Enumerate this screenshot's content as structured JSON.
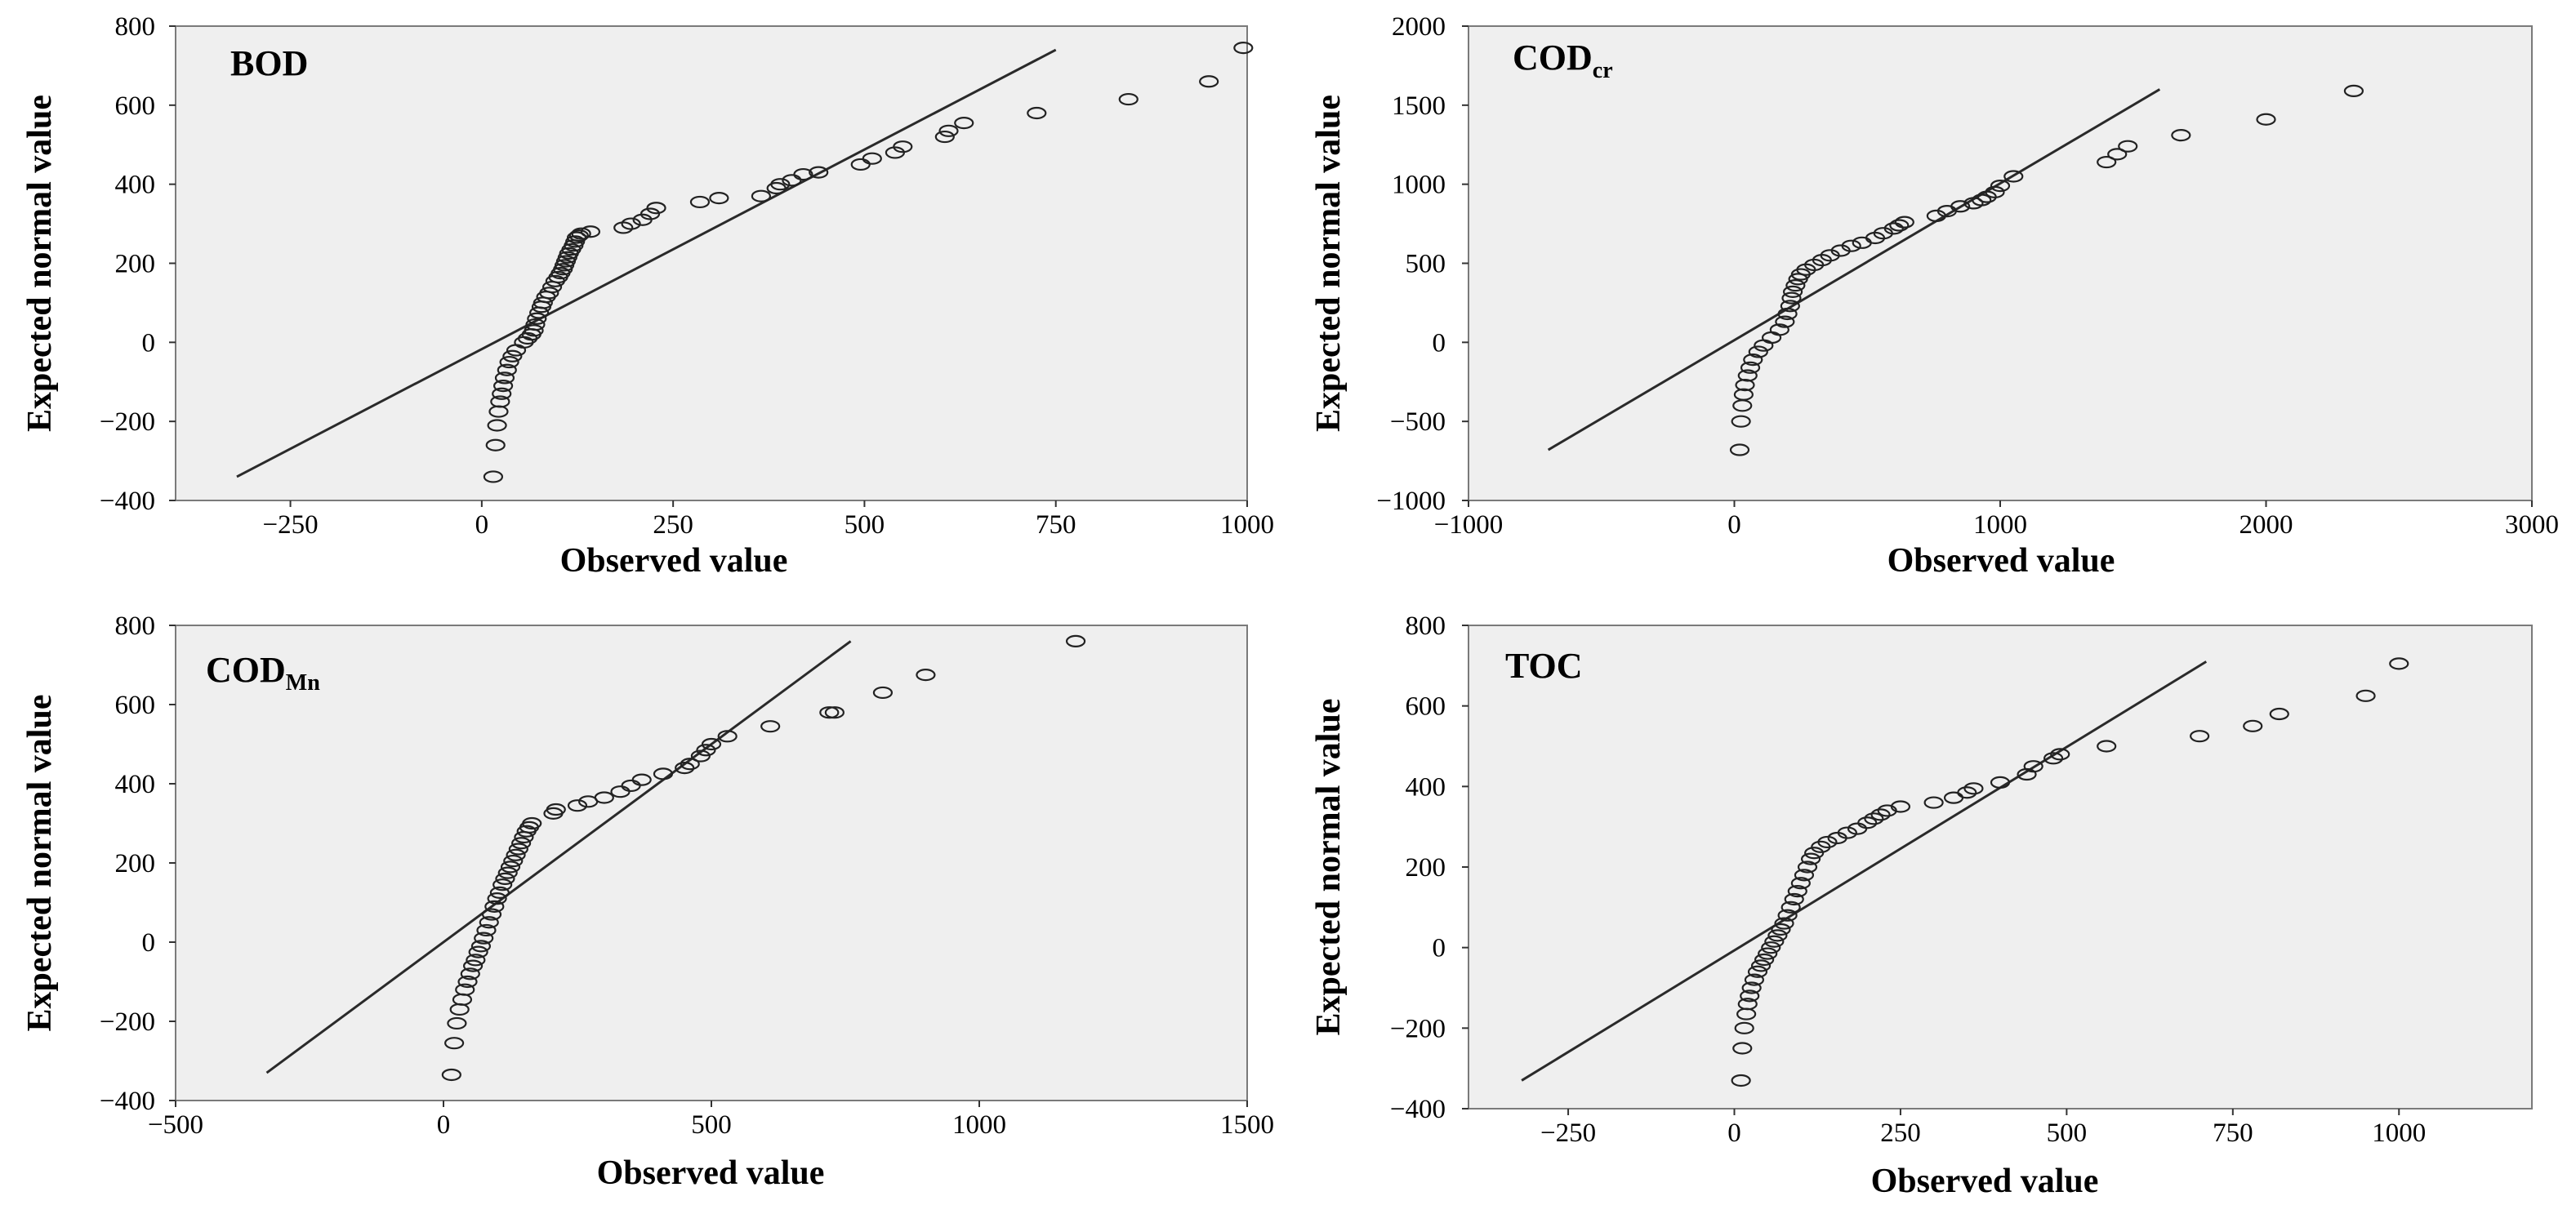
{
  "chart_data": [
    {
      "type": "scatter",
      "id": "bod",
      "title": "BOD",
      "title_sub": "",
      "xlabel": "Observed value",
      "ylabel": "Expected normal value",
      "xlim": [
        -400,
        1000
      ],
      "ylim": [
        -400,
        800
      ],
      "xticks": [
        -250,
        0,
        250,
        500,
        750,
        1000
      ],
      "yticks": [
        -400,
        -200,
        0,
        200,
        400,
        600,
        800
      ],
      "xtick_labels": [
        "−250",
        "0",
        "250",
        "500",
        "750",
        "1000"
      ],
      "ytick_labels": [
        "−400",
        "−200",
        "0",
        "200",
        "400",
        "600",
        "800"
      ],
      "reference_line": [
        [
          -320,
          -340
        ],
        [
          750,
          740
        ]
      ],
      "points": [
        [
          15,
          -340
        ],
        [
          18,
          -260
        ],
        [
          20,
          -210
        ],
        [
          22,
          -175
        ],
        [
          24,
          -150
        ],
        [
          26,
          -130
        ],
        [
          28,
          -110
        ],
        [
          30,
          -90
        ],
        [
          33,
          -70
        ],
        [
          36,
          -50
        ],
        [
          40,
          -35
        ],
        [
          45,
          -20
        ],
        [
          55,
          0
        ],
        [
          60,
          10
        ],
        [
          65,
          20
        ],
        [
          68,
          30
        ],
        [
          70,
          45
        ],
        [
          72,
          60
        ],
        [
          75,
          75
        ],
        [
          78,
          90
        ],
        [
          80,
          100
        ],
        [
          84,
          115
        ],
        [
          88,
          125
        ],
        [
          92,
          140
        ],
        [
          96,
          155
        ],
        [
          100,
          165
        ],
        [
          103,
          175
        ],
        [
          106,
          185
        ],
        [
          108,
          195
        ],
        [
          110,
          205
        ],
        [
          112,
          215
        ],
        [
          114,
          225
        ],
        [
          117,
          235
        ],
        [
          120,
          245
        ],
        [
          122,
          255
        ],
        [
          124,
          265
        ],
        [
          127,
          270
        ],
        [
          130,
          275
        ],
        [
          142,
          280
        ],
        [
          185,
          290
        ],
        [
          195,
          300
        ],
        [
          210,
          310
        ],
        [
          220,
          325
        ],
        [
          228,
          340
        ],
        [
          285,
          355
        ],
        [
          310,
          365
        ],
        [
          365,
          370
        ],
        [
          385,
          390
        ],
        [
          390,
          400
        ],
        [
          405,
          410
        ],
        [
          420,
          425
        ],
        [
          440,
          430
        ],
        [
          495,
          450
        ],
        [
          510,
          465
        ],
        [
          540,
          480
        ],
        [
          550,
          495
        ],
        [
          605,
          520
        ],
        [
          610,
          535
        ],
        [
          630,
          555
        ],
        [
          725,
          580
        ],
        [
          845,
          615
        ],
        [
          950,
          660
        ],
        [
          995,
          745
        ]
      ]
    },
    {
      "type": "scatter",
      "id": "codcr",
      "title": "COD",
      "title_sub": "cr",
      "xlabel": "Observed value",
      "ylabel": "Expected normal value",
      "xlim": [
        -1000,
        3000
      ],
      "ylim": [
        -1000,
        2000
      ],
      "xticks": [
        -1000,
        0,
        1000,
        2000,
        3000
      ],
      "yticks": [
        -1000,
        -500,
        0,
        500,
        1000,
        1500,
        2000
      ],
      "xtick_labels": [
        "−1000",
        "0",
        "1000",
        "2000",
        "3000"
      ],
      "ytick_labels": [
        "−1000",
        "−500",
        "0",
        "500",
        "1000",
        "1500",
        "2000"
      ],
      "reference_line": [
        [
          -700,
          -680
        ],
        [
          1600,
          1600
        ]
      ],
      "points": [
        [
          20,
          -680
        ],
        [
          25,
          -500
        ],
        [
          30,
          -400
        ],
        [
          35,
          -330
        ],
        [
          40,
          -270
        ],
        [
          50,
          -210
        ],
        [
          60,
          -160
        ],
        [
          70,
          -110
        ],
        [
          90,
          -60
        ],
        [
          110,
          -20
        ],
        [
          140,
          30
        ],
        [
          170,
          80
        ],
        [
          190,
          130
        ],
        [
          200,
          180
        ],
        [
          210,
          230
        ],
        [
          215,
          280
        ],
        [
          220,
          320
        ],
        [
          230,
          360
        ],
        [
          240,
          400
        ],
        [
          250,
          430
        ],
        [
          270,
          460
        ],
        [
          300,
          490
        ],
        [
          330,
          520
        ],
        [
          360,
          550
        ],
        [
          400,
          580
        ],
        [
          440,
          610
        ],
        [
          480,
          630
        ],
        [
          530,
          660
        ],
        [
          560,
          690
        ],
        [
          600,
          720
        ],
        [
          620,
          740
        ],
        [
          640,
          760
        ],
        [
          760,
          800
        ],
        [
          800,
          830
        ],
        [
          850,
          860
        ],
        [
          900,
          880
        ],
        [
          930,
          900
        ],
        [
          950,
          920
        ],
        [
          980,
          950
        ],
        [
          1000,
          990
        ],
        [
          1050,
          1050
        ],
        [
          1400,
          1140
        ],
        [
          1440,
          1190
        ],
        [
          1480,
          1240
        ],
        [
          1680,
          1310
        ],
        [
          2000,
          1410
        ],
        [
          2330,
          1590
        ]
      ]
    },
    {
      "type": "scatter",
      "id": "codmn",
      "title": "COD",
      "title_sub": "Mn",
      "xlabel": "Observed value",
      "ylabel": "Expected normal value",
      "xlim": [
        -500,
        1500
      ],
      "ylim": [
        -400,
        800
      ],
      "xticks": [
        -500,
        0,
        500,
        1000,
        1500
      ],
      "yticks": [
        -400,
        -200,
        0,
        200,
        400,
        600,
        800
      ],
      "xtick_labels": [
        "−500",
        "0",
        "500",
        "1000",
        "1500"
      ],
      "ytick_labels": [
        "−400",
        "−200",
        "0",
        "200",
        "400",
        "600",
        "800"
      ],
      "reference_line": [
        [
          -330,
          -330
        ],
        [
          760,
          760
        ]
      ],
      "points": [
        [
          15,
          -335
        ],
        [
          20,
          -255
        ],
        [
          25,
          -205
        ],
        [
          30,
          -170
        ],
        [
          35,
          -145
        ],
        [
          40,
          -120
        ],
        [
          45,
          -100
        ],
        [
          50,
          -80
        ],
        [
          55,
          -60
        ],
        [
          60,
          -45
        ],
        [
          65,
          -25
        ],
        [
          70,
          -10
        ],
        [
          75,
          10
        ],
        [
          80,
          30
        ],
        [
          85,
          50
        ],
        [
          90,
          70
        ],
        [
          95,
          90
        ],
        [
          100,
          110
        ],
        [
          105,
          125
        ],
        [
          110,
          145
        ],
        [
          115,
          160
        ],
        [
          120,
          175
        ],
        [
          125,
          190
        ],
        [
          130,
          205
        ],
        [
          135,
          220
        ],
        [
          140,
          235
        ],
        [
          145,
          250
        ],
        [
          150,
          265
        ],
        [
          155,
          280
        ],
        [
          160,
          290
        ],
        [
          165,
          300
        ],
        [
          205,
          325
        ],
        [
          210,
          335
        ],
        [
          250,
          345
        ],
        [
          270,
          355
        ],
        [
          300,
          365
        ],
        [
          330,
          380
        ],
        [
          350,
          395
        ],
        [
          370,
          410
        ],
        [
          410,
          425
        ],
        [
          450,
          440
        ],
        [
          460,
          450
        ],
        [
          480,
          470
        ],
        [
          490,
          485
        ],
        [
          500,
          500
        ],
        [
          530,
          520
        ],
        [
          610,
          545
        ],
        [
          720,
          580
        ],
        [
          730,
          580
        ],
        [
          820,
          630
        ],
        [
          900,
          675
        ],
        [
          1180,
          760
        ]
      ]
    },
    {
      "type": "scatter",
      "id": "toc",
      "title": "TOC",
      "title_sub": "",
      "xlabel": "Observed value",
      "ylabel": "Expected normal value",
      "xlim": [
        -400,
        1200
      ],
      "ylim": [
        -400,
        800
      ],
      "xticks": [
        -250,
        0,
        250,
        500,
        750,
        1000
      ],
      "yticks": [
        -400,
        -200,
        0,
        200,
        400,
        600,
        800
      ],
      "xtick_labels": [
        "−250",
        "0",
        "250",
        "500",
        "750",
        "1000"
      ],
      "ytick_labels": [
        "−400",
        "−200",
        "0",
        "200",
        "400",
        "600",
        "800"
      ],
      "reference_line": [
        [
          -320,
          -330
        ],
        [
          710,
          710
        ]
      ],
      "points": [
        [
          10,
          -330
        ],
        [
          12,
          -250
        ],
        [
          15,
          -200
        ],
        [
          18,
          -165
        ],
        [
          20,
          -140
        ],
        [
          23,
          -120
        ],
        [
          26,
          -100
        ],
        [
          30,
          -80
        ],
        [
          35,
          -60
        ],
        [
          40,
          -45
        ],
        [
          45,
          -30
        ],
        [
          50,
          -15
        ],
        [
          55,
          0
        ],
        [
          60,
          15
        ],
        [
          65,
          30
        ],
        [
          70,
          45
        ],
        [
          75,
          60
        ],
        [
          80,
          80
        ],
        [
          85,
          100
        ],
        [
          90,
          120
        ],
        [
          95,
          140
        ],
        [
          100,
          160
        ],
        [
          105,
          180
        ],
        [
          110,
          200
        ],
        [
          115,
          220
        ],
        [
          120,
          235
        ],
        [
          130,
          250
        ],
        [
          140,
          262
        ],
        [
          155,
          272
        ],
        [
          170,
          285
        ],
        [
          185,
          295
        ],
        [
          200,
          310
        ],
        [
          210,
          320
        ],
        [
          220,
          330
        ],
        [
          230,
          340
        ],
        [
          250,
          350
        ],
        [
          300,
          360
        ],
        [
          330,
          372
        ],
        [
          350,
          385
        ],
        [
          360,
          395
        ],
        [
          400,
          410
        ],
        [
          440,
          430
        ],
        [
          450,
          450
        ],
        [
          480,
          470
        ],
        [
          490,
          480
        ],
        [
          560,
          500
        ],
        [
          700,
          525
        ],
        [
          780,
          550
        ],
        [
          820,
          580
        ],
        [
          950,
          625
        ],
        [
          1000,
          705
        ]
      ]
    }
  ]
}
